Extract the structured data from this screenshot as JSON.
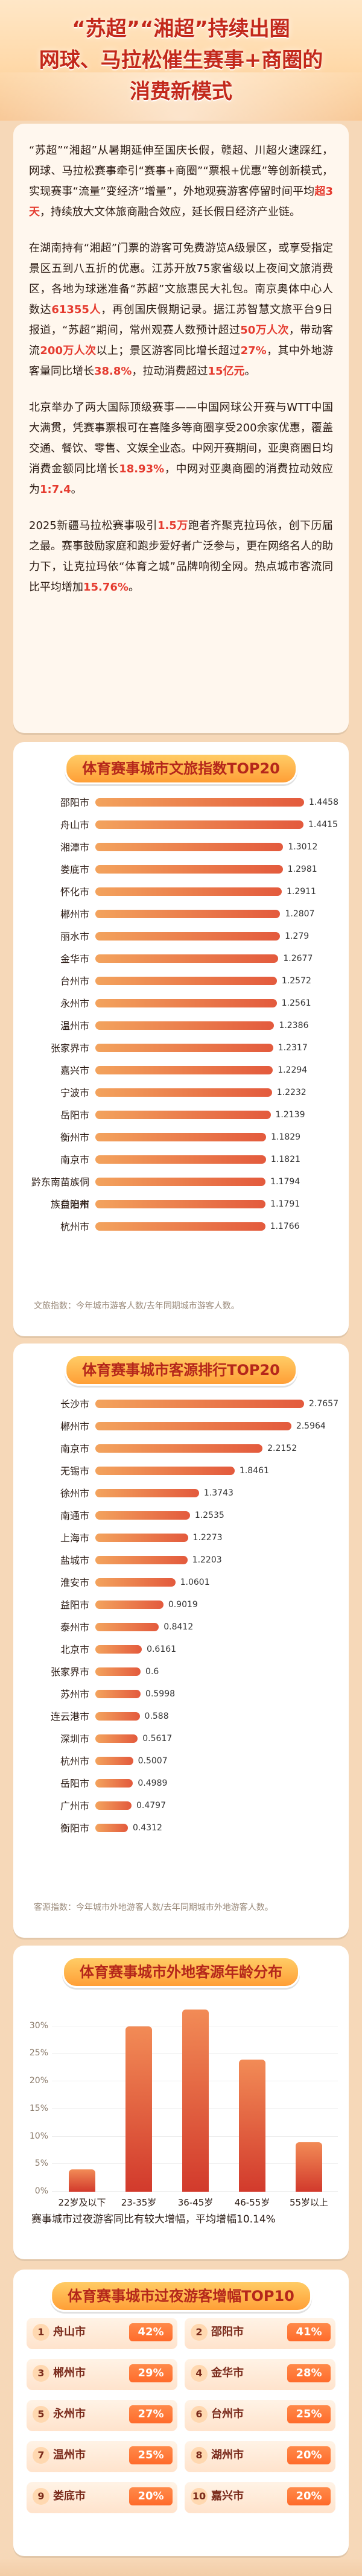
{
  "header": {
    "title_line1": "“苏超”“湘超”持续出圈",
    "title_line2": "网球、马拉松催生赛事+商圈的",
    "title_line3": "消费新模式"
  },
  "intro": {
    "p1_parts": [
      "“苏超”“湘超”从暑期延伸至国庆长假，赣超、川超火速踩红，网球、马拉松赛事牵引“赛事+商圈”“票根+优惠”等创新模式，实现赛事“流量”变经济“增量”，外地观赛游客停留时间平均",
      "超3天",
      "，持续放大文体旅商融合效应，延长假日经济产业链。"
    ],
    "p2_parts": [
      "在湖南持有“湘超”门票的游客可免费游览A级景区，或享受指定景区五到八五折的优惠。江苏开放75家省级以上夜间文旅消费区，各地为球迷准备“苏超”文旅惠民大礼包。南京奥体中心人数达",
      "61355人",
      "，再创国庆假期记录。据江苏智慧文旅平台9日报道，“苏超”期间，常州观赛人数预计超过",
      "50万人次",
      "，带动客流",
      "200万人次",
      "以上；景区游客同比增长超过",
      "27%",
      "，其中外地游客量同比增长",
      "38.8%",
      "，拉动消费超过",
      "15亿元",
      "。"
    ],
    "p3_parts": [
      "北京举办了两大国际顶级赛事——中国网球公开赛与WTT中国大满贯，凭赛事票根可在喜隆多等商圈享受200余家优惠，覆盖交通、餐饮、零售、文娱全业态。中网开赛期间，亚奥商圈日均消费金额同比增长",
      "18.93%",
      "，中网对亚奥商圈的消费拉动效应为",
      "1:7.4",
      "。"
    ],
    "p4_parts": [
      "2025新疆马拉松赛事吸引",
      "1.5万",
      "跑者齐聚克拉玛依，创下历届之最。赛事鼓励家庭和跑步爱好者广泛参与，更在网络名人的助力下，让克拉玛依“体育之城”品牌响彻全网。热点城市客流同比平均增加",
      "15.76%",
      "。"
    ]
  },
  "chart_data": [
    {
      "type": "bar",
      "title": "体育赛事城市文旅指数TOP20",
      "categories": [
        "邵阳市",
        "舟山市",
        "湘潭市",
        "娄底市",
        "怀化市",
        "郴州市",
        "丽水市",
        "金华市",
        "台州市",
        "永州市",
        "温州市",
        "张家界市",
        "嘉兴市",
        "宁波市",
        "岳阳市",
        "衡州市",
        "南京市",
        "黔东南苗族侗族自治州",
        "益阳市",
        "杭州市"
      ],
      "values": [
        1.4458,
        1.4415,
        1.3012,
        1.2981,
        1.2911,
        1.2807,
        1.279,
        1.2677,
        1.2572,
        1.2561,
        1.2386,
        1.2317,
        1.2294,
        1.2232,
        1.2139,
        1.1829,
        1.1821,
        1.1794,
        1.1791,
        1.1766
      ],
      "xlim": [
        0,
        1.4458
      ],
      "source": "文旅指数：今年城市游客人数/去年同期城市游客人数。"
    },
    {
      "type": "bar",
      "title": "体育赛事城市客源排行TOP20",
      "categories": [
        "长沙市",
        "郴州市",
        "南京市",
        "无锡市",
        "徐州市",
        "南通市",
        "上海市",
        "盐城市",
        "淮安市",
        "益阳市",
        "泰州市",
        "北京市",
        "张家界市",
        "苏州市",
        "连云港市",
        "深圳市",
        "杭州市",
        "岳阳市",
        "广州市",
        "衡阳市"
      ],
      "values": [
        2.7657,
        2.5964,
        2.2152,
        1.8461,
        1.3743,
        1.2535,
        1.2273,
        1.2203,
        1.0601,
        0.9019,
        0.8412,
        0.6161,
        0.6,
        0.5998,
        0.588,
        0.5617,
        0.5007,
        0.4989,
        0.4797,
        0.4312
      ],
      "xlim": [
        0,
        2.7657
      ],
      "source": "客源指数：今年城市外地游客人数/去年同期城市外地游客人数。"
    },
    {
      "type": "bar",
      "title": "体育赛事城市外地客源年龄分布",
      "categories": [
        "22岁及以下",
        "23-35岁",
        "36-45岁",
        "46-55岁",
        "55岁以上"
      ],
      "values": [
        4,
        30,
        33,
        24,
        9
      ],
      "ylim": [
        0,
        35
      ],
      "yticks": [
        "0%",
        "5%",
        "10%",
        "15%",
        "20%",
        "25%",
        "30%"
      ]
    }
  ],
  "age_note": "赛事城市过夜游客同比有较大增幅，平均增幅10.14%",
  "top10": {
    "title": "体育赛事城市过夜游客增幅TOP10",
    "items": [
      {
        "rank": "1",
        "city": "舟山市",
        "pct": "42%"
      },
      {
        "rank": "2",
        "city": "邵阳市",
        "pct": "41%"
      },
      {
        "rank": "3",
        "city": "郴州市",
        "pct": "29%"
      },
      {
        "rank": "4",
        "city": "金华市",
        "pct": "28%"
      },
      {
        "rank": "5",
        "city": "永州市",
        "pct": "27%"
      },
      {
        "rank": "6",
        "city": "台州市",
        "pct": "25%"
      },
      {
        "rank": "7",
        "city": "温州市",
        "pct": "25%"
      },
      {
        "rank": "8",
        "city": "湖州市",
        "pct": "20%"
      },
      {
        "rank": "9",
        "city": "娄底市",
        "pct": "20%"
      },
      {
        "rank": "10",
        "city": "嘉兴市",
        "pct": "20%"
      }
    ]
  }
}
